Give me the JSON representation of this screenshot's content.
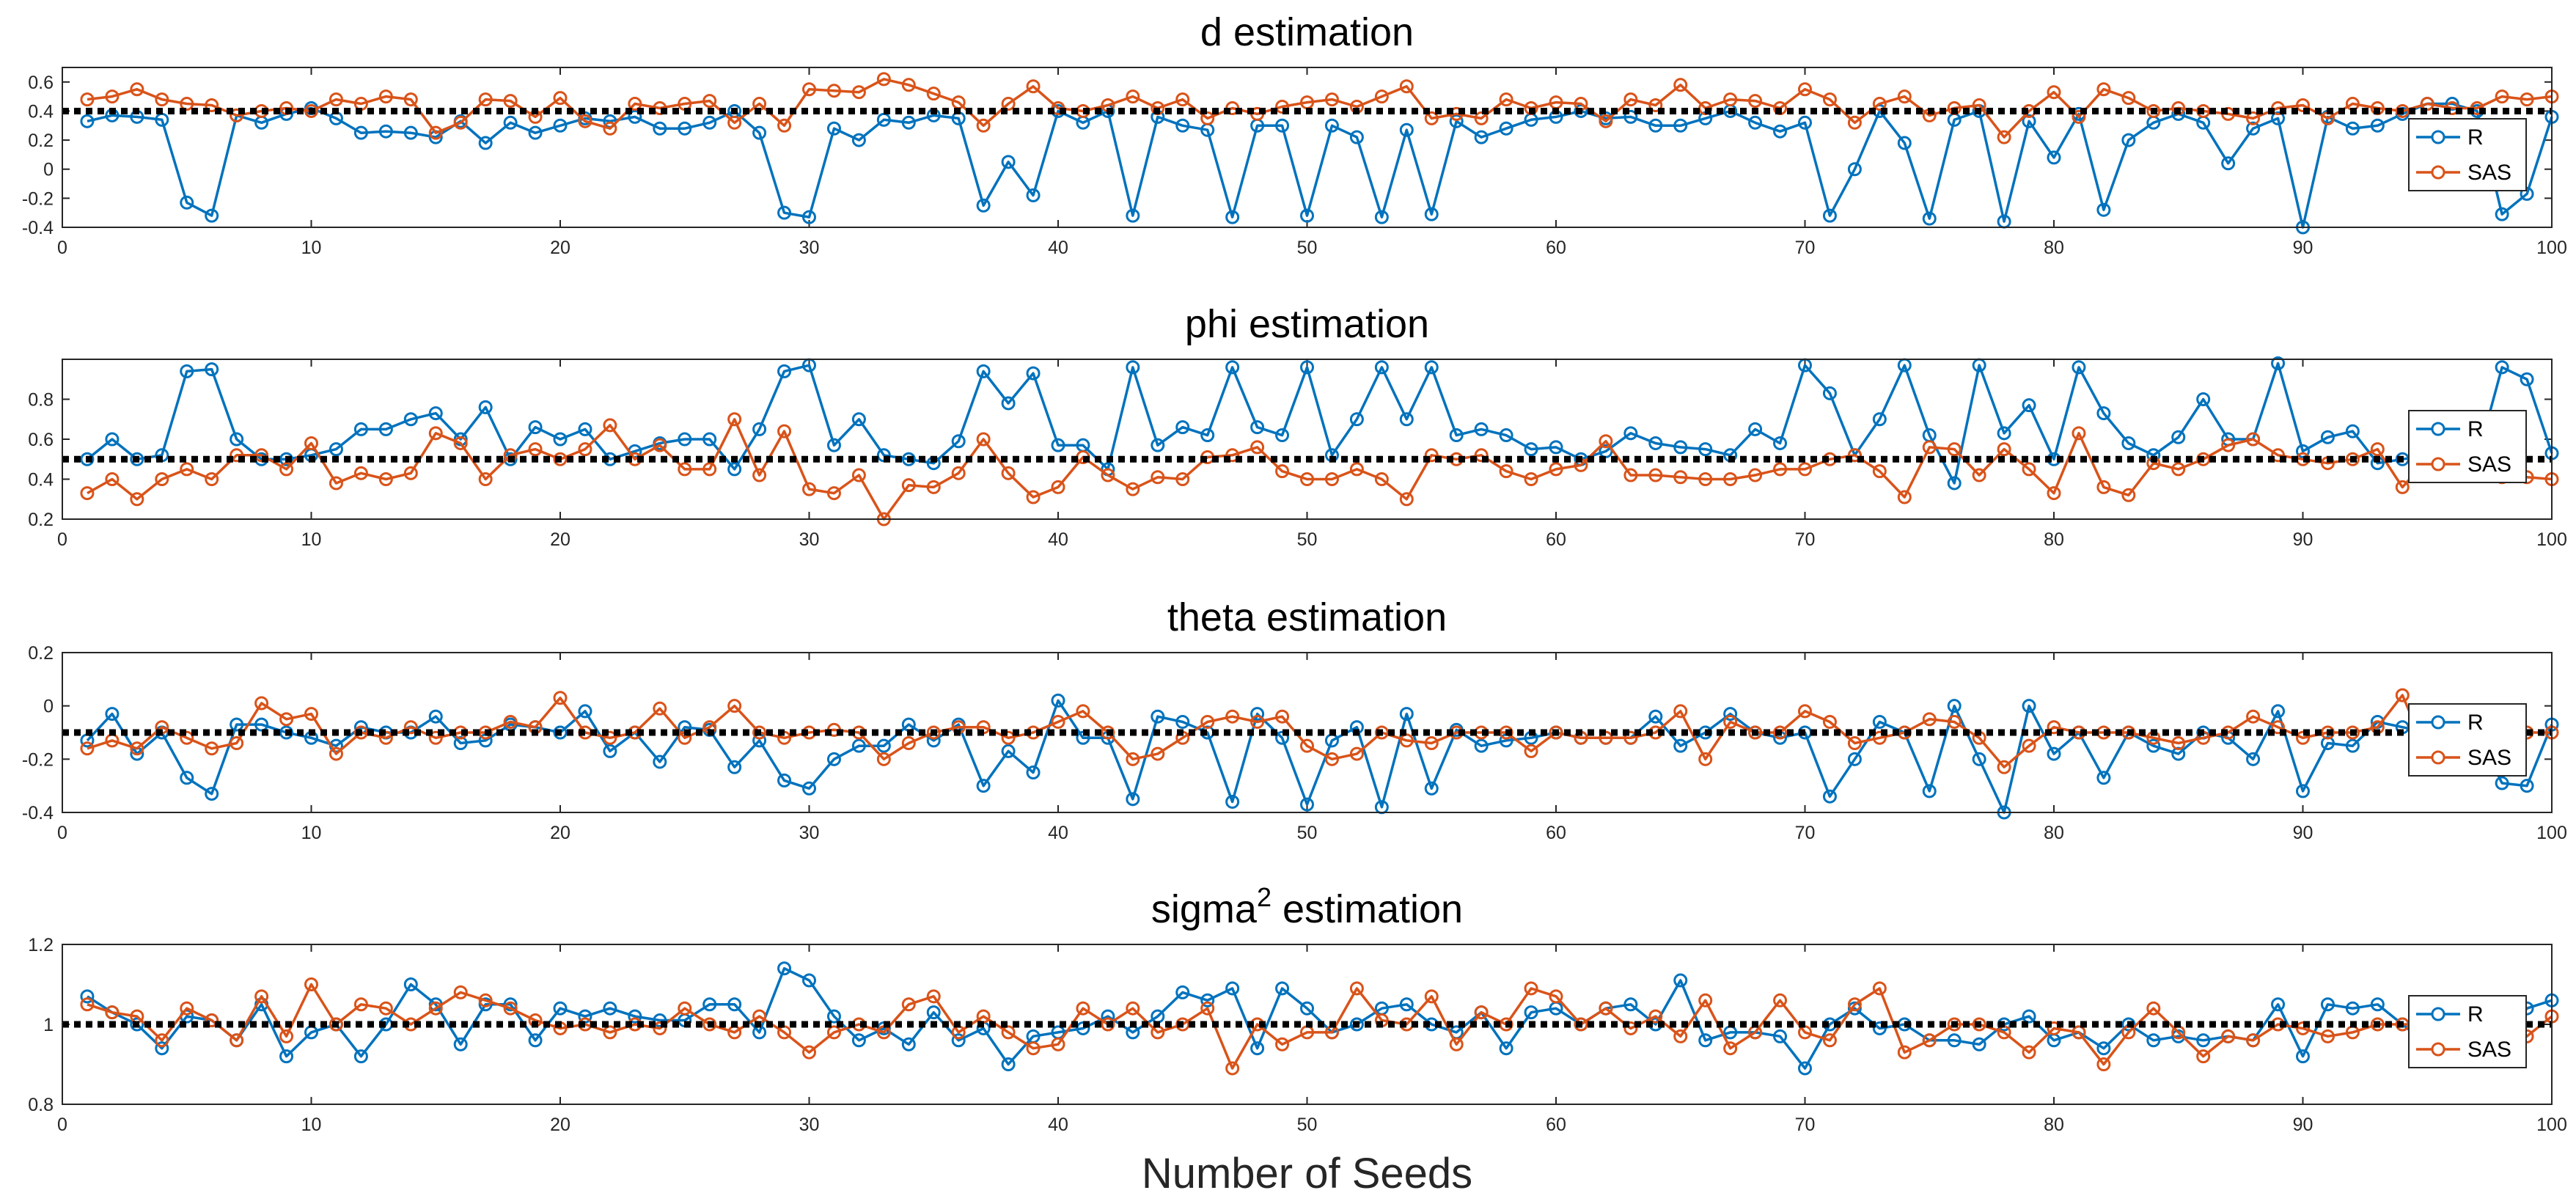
{
  "chart_data": {
    "type": "line",
    "figure_xlabel": "Number of Seeds",
    "x_ticks": [
      0,
      10,
      20,
      30,
      40,
      50,
      60,
      70,
      80,
      90,
      100
    ],
    "xlim": [
      0,
      100
    ],
    "colors": {
      "R": "#0072BD",
      "SAS": "#D95319",
      "reference": "#000000"
    },
    "panels": [
      {
        "title": "d estimation",
        "ylim": [
          -0.4,
          0.7
        ],
        "y_ticks": [
          -0.4,
          -0.2,
          0,
          0.2,
          0.4,
          0.6
        ],
        "y_tick_labels": [
          "-0.4",
          "-0.2",
          "0",
          "0.2",
          "0.4",
          "0.6"
        ],
        "reference": 0.4,
        "legend": [
          "R",
          "SAS"
        ],
        "legend_location": "right",
        "series": [
          {
            "name": "R",
            "values": [
              0.33,
              0.37,
              0.36,
              0.34,
              -0.23,
              -0.32,
              0.37,
              0.32,
              0.38,
              0.42,
              0.35,
              0.25,
              0.26,
              0.25,
              0.22,
              0.33,
              0.18,
              0.32,
              0.25,
              0.3,
              0.35,
              0.33,
              0.36,
              0.28,
              0.28,
              0.32,
              0.4,
              0.25,
              -0.3,
              -0.33,
              0.28,
              0.2,
              0.34,
              0.32,
              0.37,
              0.35,
              -0.25,
              0.05,
              -0.18,
              0.4,
              0.32,
              0.4,
              -0.32,
              0.36,
              0.3,
              0.27,
              -0.33,
              0.3,
              0.3,
              -0.32,
              0.3,
              0.22,
              -0.33,
              0.27,
              -0.31,
              0.33,
              0.22,
              0.28,
              0.34,
              0.36,
              0.4,
              0.35,
              0.36,
              0.3,
              0.3,
              0.35,
              0.4,
              0.32,
              0.26,
              0.32,
              -0.32,
              0.0,
              0.4,
              0.18,
              -0.34,
              0.34,
              0.4,
              -0.36,
              0.33,
              0.08,
              0.38,
              -0.28,
              0.2,
              0.32,
              0.38,
              0.32,
              0.04,
              0.28,
              0.35,
              -0.4,
              0.36,
              0.28,
              0.3,
              0.38,
              0.45,
              0.45,
              0.4,
              -0.31,
              -0.17,
              0.36
            ]
          },
          {
            "name": "SAS",
            "values": [
              0.48,
              0.5,
              0.55,
              0.48,
              0.45,
              0.44,
              0.37,
              0.4,
              0.42,
              0.4,
              0.48,
              0.45,
              0.5,
              0.48,
              0.25,
              0.32,
              0.48,
              0.47,
              0.36,
              0.49,
              0.33,
              0.28,
              0.45,
              0.42,
              0.45,
              0.47,
              0.32,
              0.45,
              0.3,
              0.55,
              0.54,
              0.53,
              0.62,
              0.58,
              0.52,
              0.46,
              0.3,
              0.45,
              0.57,
              0.42,
              0.4,
              0.44,
              0.5,
              0.42,
              0.48,
              0.35,
              0.42,
              0.38,
              0.43,
              0.46,
              0.48,
              0.43,
              0.5,
              0.57,
              0.35,
              0.38,
              0.35,
              0.48,
              0.42,
              0.46,
              0.45,
              0.33,
              0.48,
              0.44,
              0.58,
              0.42,
              0.48,
              0.47,
              0.42,
              0.55,
              0.48,
              0.32,
              0.45,
              0.5,
              0.37,
              0.42,
              0.44,
              0.22,
              0.4,
              0.53,
              0.36,
              0.55,
              0.49,
              0.4,
              0.42,
              0.4,
              0.38,
              0.35,
              0.42,
              0.44,
              0.35,
              0.45,
              0.42,
              0.4,
              0.45,
              0.42,
              0.42,
              0.5,
              0.48,
              0.5
            ]
          }
        ]
      },
      {
        "title": "phi estimation",
        "ylim": [
          0.2,
          1.0
        ],
        "y_ticks": [
          0.2,
          0.4,
          0.6,
          0.8
        ],
        "y_tick_labels": [
          "0.2",
          "0.4",
          "0.6",
          "0.8"
        ],
        "reference": 0.5,
        "legend": [
          "R",
          "SAS"
        ],
        "legend_location": "right",
        "series": [
          {
            "name": "R",
            "values": [
              0.5,
              0.6,
              0.5,
              0.52,
              0.94,
              0.95,
              0.6,
              0.5,
              0.5,
              0.52,
              0.55,
              0.65,
              0.65,
              0.7,
              0.73,
              0.6,
              0.76,
              0.5,
              0.66,
              0.6,
              0.65,
              0.5,
              0.54,
              0.58,
              0.6,
              0.6,
              0.45,
              0.65,
              0.94,
              0.97,
              0.57,
              0.7,
              0.52,
              0.5,
              0.48,
              0.59,
              0.94,
              0.78,
              0.93,
              0.57,
              0.57,
              0.45,
              0.96,
              0.57,
              0.66,
              0.62,
              0.96,
              0.66,
              0.62,
              0.96,
              0.52,
              0.7,
              0.96,
              0.7,
              0.96,
              0.62,
              0.65,
              0.62,
              0.55,
              0.56,
              0.5,
              0.54,
              0.63,
              0.58,
              0.56,
              0.55,
              0.52,
              0.65,
              0.58,
              0.97,
              0.83,
              0.52,
              0.7,
              0.97,
              0.62,
              0.38,
              0.97,
              0.63,
              0.77,
              0.5,
              0.96,
              0.73,
              0.58,
              0.52,
              0.61,
              0.8,
              0.6,
              0.6,
              0.98,
              0.54,
              0.61,
              0.64,
              0.48,
              0.5,
              0.52,
              0.45,
              0.5,
              0.96,
              0.9,
              0.53
            ]
          },
          {
            "name": "SAS",
            "values": [
              0.33,
              0.4,
              0.3,
              0.4,
              0.45,
              0.4,
              0.52,
              0.52,
              0.45,
              0.58,
              0.38,
              0.43,
              0.4,
              0.43,
              0.63,
              0.58,
              0.4,
              0.52,
              0.55,
              0.5,
              0.55,
              0.67,
              0.5,
              0.57,
              0.45,
              0.45,
              0.7,
              0.42,
              0.64,
              0.35,
              0.33,
              0.42,
              0.2,
              0.37,
              0.36,
              0.43,
              0.6,
              0.43,
              0.31,
              0.36,
              0.51,
              0.42,
              0.35,
              0.41,
              0.4,
              0.51,
              0.52,
              0.56,
              0.44,
              0.4,
              0.4,
              0.45,
              0.4,
              0.3,
              0.52,
              0.5,
              0.52,
              0.44,
              0.4,
              0.45,
              0.47,
              0.59,
              0.42,
              0.42,
              0.41,
              0.4,
              0.4,
              0.42,
              0.45,
              0.45,
              0.5,
              0.52,
              0.44,
              0.31,
              0.56,
              0.55,
              0.42,
              0.55,
              0.45,
              0.33,
              0.63,
              0.36,
              0.32,
              0.48,
              0.45,
              0.5,
              0.57,
              0.6,
              0.52,
              0.5,
              0.48,
              0.5,
              0.55,
              0.36,
              0.5,
              0.5,
              0.5,
              0.41,
              0.41,
              0.4
            ]
          }
        ]
      },
      {
        "title": "theta estimation",
        "ylim": [
          -0.4,
          0.2
        ],
        "y_ticks": [
          -0.4,
          -0.2,
          0,
          0.2
        ],
        "y_tick_labels": [
          "-0.4",
          "-0.2",
          "0",
          "0.2"
        ],
        "reference": -0.1,
        "legend": [
          "R",
          "SAS"
        ],
        "legend_location": "right",
        "series": [
          {
            "name": "R",
            "values": [
              -0.13,
              -0.03,
              -0.18,
              -0.1,
              -0.27,
              -0.33,
              -0.07,
              -0.07,
              -0.1,
              -0.12,
              -0.15,
              -0.08,
              -0.1,
              -0.1,
              -0.04,
              -0.14,
              -0.13,
              -0.07,
              -0.08,
              -0.1,
              -0.02,
              -0.17,
              -0.1,
              -0.21,
              -0.08,
              -0.09,
              -0.23,
              -0.13,
              -0.28,
              -0.31,
              -0.2,
              -0.15,
              -0.15,
              -0.07,
              -0.13,
              -0.07,
              -0.3,
              -0.17,
              -0.25,
              0.02,
              -0.12,
              -0.12,
              -0.35,
              -0.04,
              -0.06,
              -0.1,
              -0.36,
              -0.03,
              -0.12,
              -0.37,
              -0.13,
              -0.08,
              -0.38,
              -0.03,
              -0.31,
              -0.09,
              -0.15,
              -0.13,
              -0.12,
              -0.1,
              -0.12,
              -0.12,
              -0.12,
              -0.04,
              -0.15,
              -0.1,
              -0.03,
              -0.1,
              -0.12,
              -0.1,
              -0.34,
              -0.2,
              -0.06,
              -0.1,
              -0.32,
              0.0,
              -0.2,
              -0.4,
              0.0,
              -0.18,
              -0.1,
              -0.27,
              -0.1,
              -0.15,
              -0.18,
              -0.1,
              -0.12,
              -0.2,
              -0.02,
              -0.32,
              -0.14,
              -0.15,
              -0.06,
              -0.08,
              -0.1,
              -0.12,
              -0.1,
              -0.29,
              -0.3,
              -0.07
            ]
          },
          {
            "name": "SAS",
            "values": [
              -0.16,
              -0.13,
              -0.16,
              -0.08,
              -0.12,
              -0.16,
              -0.14,
              0.01,
              -0.05,
              -0.03,
              -0.18,
              -0.1,
              -0.12,
              -0.08,
              -0.12,
              -0.1,
              -0.1,
              -0.06,
              -0.08,
              0.03,
              -0.1,
              -0.12,
              -0.1,
              -0.01,
              -0.12,
              -0.08,
              0.0,
              -0.1,
              -0.12,
              -0.1,
              -0.09,
              -0.1,
              -0.2,
              -0.14,
              -0.1,
              -0.08,
              -0.08,
              -0.12,
              -0.1,
              -0.06,
              -0.02,
              -0.1,
              -0.2,
              -0.18,
              -0.12,
              -0.06,
              -0.04,
              -0.06,
              -0.04,
              -0.15,
              -0.2,
              -0.18,
              -0.1,
              -0.13,
              -0.14,
              -0.1,
              -0.1,
              -0.1,
              -0.17,
              -0.1,
              -0.12,
              -0.12,
              -0.12,
              -0.1,
              -0.02,
              -0.2,
              -0.06,
              -0.1,
              -0.1,
              -0.02,
              -0.06,
              -0.14,
              -0.12,
              -0.1,
              -0.05,
              -0.06,
              -0.12,
              -0.23,
              -0.15,
              -0.08,
              -0.1,
              -0.1,
              -0.1,
              -0.12,
              -0.14,
              -0.12,
              -0.1,
              -0.04,
              -0.08,
              -0.12,
              -0.1,
              -0.1,
              -0.08,
              0.04,
              -0.18,
              -0.12,
              -0.1,
              -0.1,
              -0.1,
              -0.1
            ]
          }
        ]
      },
      {
        "title_main": "sigma",
        "title_sup": "2",
        "title_rest": " estimation",
        "ylim": [
          0.8,
          1.2
        ],
        "y_ticks": [
          0.8,
          1,
          1.2
        ],
        "y_tick_labels": [
          "0.8",
          "1",
          "1.2"
        ],
        "reference": 1.0,
        "legend": [
          "R",
          "SAS"
        ],
        "legend_location": "right",
        "series": [
          {
            "name": "R",
            "values": [
              1.07,
              1.03,
              1.0,
              0.94,
              1.02,
              1.01,
              0.96,
              1.05,
              0.92,
              0.98,
              1.0,
              0.92,
              1.0,
              1.1,
              1.05,
              0.95,
              1.05,
              1.05,
              0.96,
              1.04,
              1.02,
              1.04,
              1.02,
              1.01,
              1.01,
              1.05,
              1.05,
              0.98,
              1.14,
              1.11,
              1.02,
              0.96,
              0.99,
              0.95,
              1.03,
              0.96,
              0.99,
              0.9,
              0.97,
              0.98,
              0.99,
              1.02,
              0.98,
              1.02,
              1.08,
              1.06,
              1.09,
              0.94,
              1.09,
              1.04,
              0.98,
              1.0,
              1.04,
              1.05,
              1.0,
              0.98,
              1.03,
              0.94,
              1.03,
              1.04,
              1.0,
              1.04,
              1.05,
              1.0,
              1.11,
              0.96,
              0.98,
              0.98,
              0.97,
              0.89,
              1.0,
              1.04,
              0.99,
              1.0,
              0.96,
              0.96,
              0.95,
              1.0,
              1.02,
              0.96,
              0.98,
              0.94,
              1.0,
              0.96,
              0.97,
              0.96,
              0.97,
              0.96,
              1.05,
              0.92,
              1.05,
              1.04,
              1.05,
              1.0,
              0.95,
              1.0,
              1.02,
              0.96,
              1.04,
              1.06
            ]
          },
          {
            "name": "SAS",
            "values": [
              1.05,
              1.03,
              1.02,
              0.96,
              1.04,
              1.01,
              0.96,
              1.07,
              0.97,
              1.1,
              1.0,
              1.05,
              1.04,
              1.0,
              1.04,
              1.08,
              1.06,
              1.04,
              1.01,
              0.99,
              1.0,
              0.98,
              1.0,
              0.99,
              1.04,
              1.0,
              0.98,
              1.02,
              0.98,
              0.93,
              0.98,
              1.0,
              0.98,
              1.05,
              1.07,
              0.98,
              1.02,
              0.98,
              0.94,
              0.95,
              1.04,
              1.0,
              1.04,
              0.98,
              1.0,
              1.04,
              0.89,
              1.0,
              0.95,
              0.98,
              0.98,
              1.09,
              1.01,
              1.0,
              1.07,
              0.95,
              1.03,
              1.0,
              1.09,
              1.07,
              1.0,
              1.04,
              0.99,
              1.02,
              0.97,
              1.06,
              0.94,
              0.98,
              1.06,
              0.98,
              0.96,
              1.05,
              1.09,
              0.93,
              0.96,
              1.0,
              1.0,
              0.98,
              0.93,
              0.99,
              0.98,
              0.9,
              0.98,
              1.04,
              0.98,
              0.92,
              0.97,
              0.96,
              1.0,
              0.99,
              0.97,
              0.98,
              1.0,
              1.0,
              1.0,
              1.0,
              1.02,
              1.0,
              0.97,
              1.02
            ]
          }
        ]
      }
    ]
  }
}
